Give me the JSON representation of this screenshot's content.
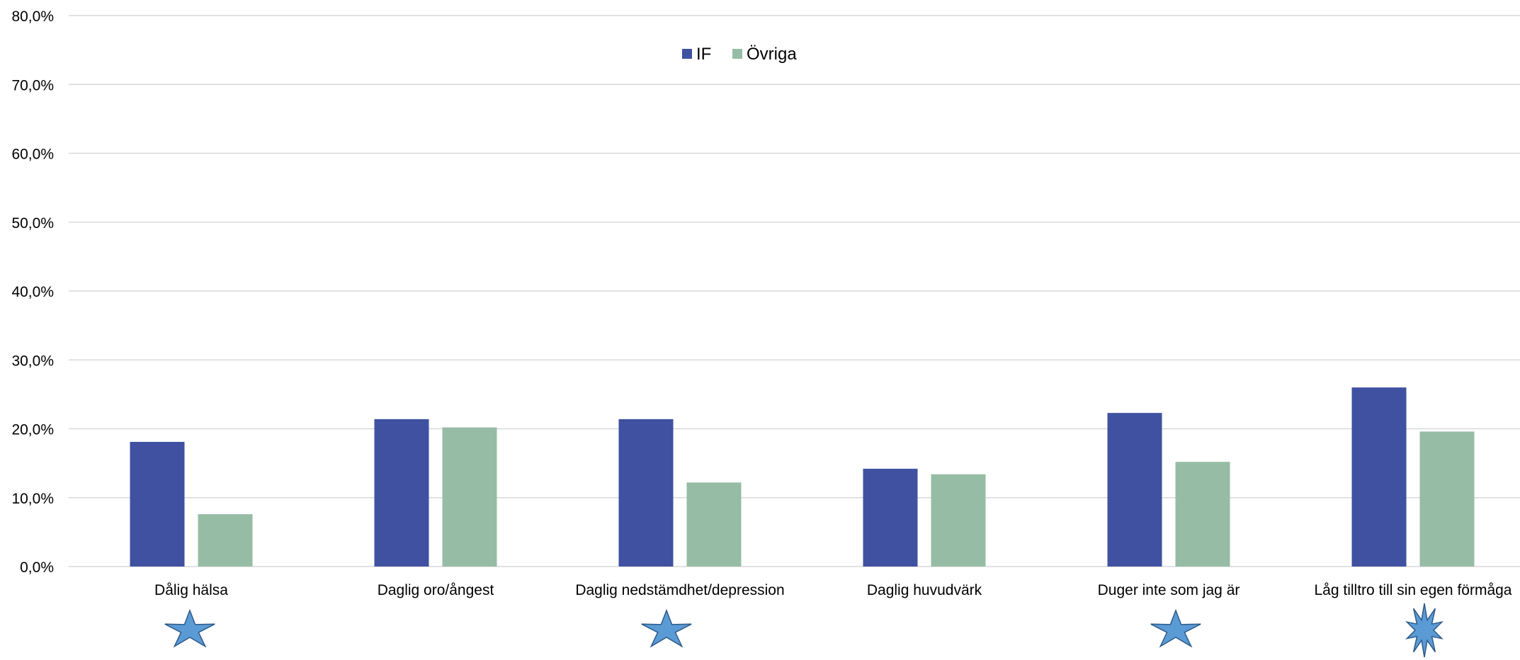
{
  "chart_data": {
    "type": "bar",
    "categories": [
      "Dålig hälsa",
      "Daglig oro/ångest",
      "Daglig nedstämdhet/depression",
      "Daglig huvudvärk",
      "Duger inte som jag är",
      "Låg tilltro till sin egen förmåga"
    ],
    "series": [
      {
        "name": "IF",
        "values": [
          18.1,
          21.4,
          21.4,
          14.2,
          22.3,
          26.0
        ],
        "color": "#3f51a0"
      },
      {
        "name": "Övriga",
        "values": [
          7.6,
          20.2,
          12.2,
          13.4,
          15.2,
          19.6
        ],
        "color": "#97bca5"
      }
    ],
    "yticks": [
      "0,0%",
      "10,0%",
      "20,0%",
      "30,0%",
      "40,0%",
      "50,0%",
      "60,0%",
      "70,0%",
      "80,0%"
    ],
    "ylim": [
      0,
      80
    ],
    "grid": true,
    "legend_position": "top-center",
    "markers": [
      {
        "category": "Dålig hälsa",
        "shape": "star"
      },
      {
        "category": "Daglig nedstämdhet/depression",
        "shape": "star"
      },
      {
        "category": "Duger inte som jag är",
        "shape": "star"
      },
      {
        "category": "Låg tilltro till sin egen förmåga",
        "shape": "burst"
      }
    ],
    "marker_color": "#5b9bd5",
    "marker_stroke": "#2e5a8a"
  }
}
